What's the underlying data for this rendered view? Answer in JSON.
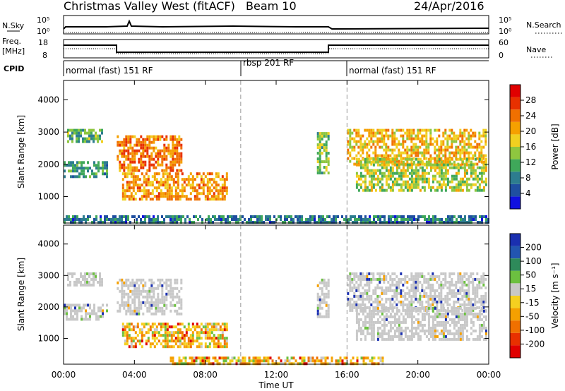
{
  "header": {
    "title": "Christmas Valley West (fitACF)",
    "beam": "Beam 10",
    "date": "24/Apr/2016"
  },
  "nsky_panel": {
    "left_label": "N.Sky",
    "left_tick_top": "10^5",
    "left_tick_bottom": "10^0",
    "right_tick_top": "10^5",
    "right_tick_bottom": "10^0",
    "right_label": "N.Search"
  },
  "freq_panel": {
    "left_label_1": "Freq.",
    "left_label_2": "[MHz]",
    "left_tick_top": "18",
    "left_tick_bottom": "8",
    "right_tick_top": "60",
    "right_tick_bottom": "0",
    "right_label": "Nave"
  },
  "cpid_panel": {
    "label": "CPID",
    "modes": [
      "normal (fast) 151 RF",
      "rbsp 201 RF",
      "normal (fast) 151 RF"
    ]
  },
  "colorbars": {
    "power": {
      "title": "Power [dB]",
      "ticks": [
        "4",
        "8",
        "12",
        "16",
        "20",
        "24",
        "28"
      ],
      "colors": [
        "#1010e0",
        "#1f4fa0",
        "#2d7d8f",
        "#3fa85a",
        "#8ec63f",
        "#f0d020",
        "#f5a000",
        "#f07000",
        "#e83000",
        "#e00000"
      ]
    },
    "velocity": {
      "title": "Velocity [m s^-1]",
      "ticks": [
        "200",
        "100",
        "50",
        "15",
        "-15",
        "-50",
        "-100",
        "-200"
      ],
      "colors": [
        "#1a2fb0",
        "#2255b0",
        "#2e8a5a",
        "#6cc040",
        "#c8c8c8",
        "#f5d020",
        "#f5a000",
        "#f07000",
        "#e83000",
        "#e00000"
      ]
    }
  },
  "chart_data": [
    {
      "type": "heatmap",
      "title": "Power",
      "ylabel": "Slant Range [km]",
      "xlabel": "",
      "ylim": [
        180,
        4600
      ],
      "y_ticks": [
        1000,
        2000,
        3000,
        4000
      ],
      "x_tick_labels": [
        "00:00",
        "04:00",
        "08:00",
        "12:00",
        "16:00",
        "20:00",
        "00:00"
      ],
      "xlim_hours": [
        0,
        24
      ],
      "mode_change_hours": [
        10,
        16
      ],
      "colorbar": "power",
      "echo_regions": [
        {
          "t": [
            0.2,
            2.2
          ],
          "r": [
            2700,
            3100
          ],
          "level": 12
        },
        {
          "t": [
            0.0,
            2.5
          ],
          "r": [
            1650,
            2100
          ],
          "level": 10
        },
        {
          "t": [
            3.0,
            6.7
          ],
          "r": [
            1800,
            2900
          ],
          "level": 24
        },
        {
          "t": [
            3.3,
            9.2
          ],
          "r": [
            900,
            1750
          ],
          "level": 22
        },
        {
          "t": [
            0.0,
            24.0
          ],
          "r": [
            180,
            420
          ],
          "level": 8
        },
        {
          "t": [
            14.3,
            15.0
          ],
          "r": [
            1700,
            3000
          ],
          "level": 14
        },
        {
          "t": [
            16.0,
            23.8
          ],
          "r": [
            2000,
            3100
          ],
          "level": 20
        },
        {
          "t": [
            16.5,
            23.8
          ],
          "r": [
            1200,
            2200
          ],
          "level": 16
        }
      ]
    },
    {
      "type": "heatmap",
      "title": "Velocity",
      "ylabel": "Slant Range [km]",
      "xlabel": "Time UT",
      "ylim": [
        180,
        4600
      ],
      "y_ticks": [
        1000,
        2000,
        3000,
        4000
      ],
      "x_tick_labels": [
        "00:00",
        "04:00",
        "08:00",
        "12:00",
        "16:00",
        "20:00",
        "00:00"
      ],
      "xlim_hours": [
        0,
        24
      ],
      "mode_change_hours": [
        10,
        16
      ],
      "colorbar": "velocity",
      "echo_regions": [
        {
          "t": [
            0.2,
            2.2
          ],
          "r": [
            2700,
            3100
          ],
          "level": 0
        },
        {
          "t": [
            0.0,
            2.5
          ],
          "r": [
            1650,
            2100
          ],
          "level": 0
        },
        {
          "t": [
            3.0,
            6.7
          ],
          "r": [
            1800,
            2900
          ],
          "level": 0
        },
        {
          "t": [
            3.3,
            9.2
          ],
          "r": [
            700,
            1500
          ],
          "level": -40
        },
        {
          "t": [
            6.0,
            18.0
          ],
          "r": [
            180,
            420
          ],
          "level": -40
        },
        {
          "t": [
            14.3,
            15.0
          ],
          "r": [
            1700,
            2900
          ],
          "level": 0
        },
        {
          "t": [
            16.0,
            23.8
          ],
          "r": [
            1900,
            3100
          ],
          "level": 0
        },
        {
          "t": [
            16.5,
            23.8
          ],
          "r": [
            1000,
            2000
          ],
          "level": 0
        }
      ]
    }
  ]
}
